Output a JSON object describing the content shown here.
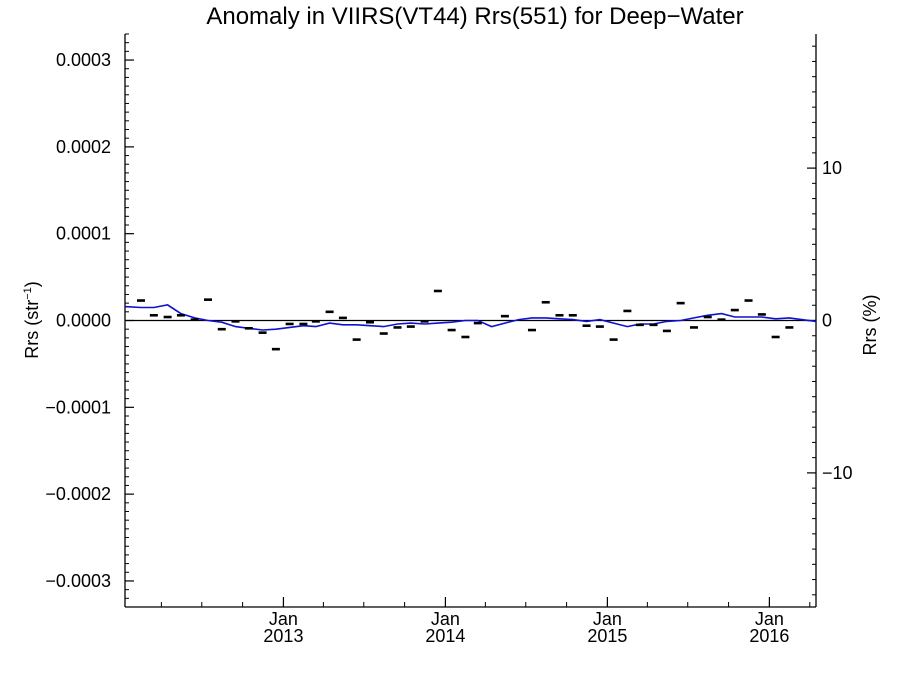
{
  "chart_data": {
    "type": "scatter",
    "title": "Anomaly in VIIRS(VT44) Rrs(551) for Deep−Water",
    "ylabel_left": "Rrs (str",
    "ylabel_left_sup": "−1",
    "ylabel_left_close": ")",
    "ylabel_right": "Rrs (%)",
    "ylim_left": [
      -0.00033,
      0.00033
    ],
    "ylim_right": [
      -18.8,
      18.8
    ],
    "xlim": [
      "2012-01-10",
      "2016-04-15"
    ],
    "left_ticks": [
      {
        "value": 0.0003,
        "label": "0.0003"
      },
      {
        "value": 0.0002,
        "label": "0.0002"
      },
      {
        "value": 0.0001,
        "label": "0.0001"
      },
      {
        "value": 0.0,
        "label": "0.0000"
      },
      {
        "value": -0.0001,
        "label": "−0.0001"
      },
      {
        "value": -0.0002,
        "label": "−0.0002"
      },
      {
        "value": -0.0003,
        "label": "−0.0003"
      }
    ],
    "right_ticks": [
      {
        "value": 10,
        "label": "10"
      },
      {
        "value": 0,
        "label": "0"
      },
      {
        "value": -10,
        "label": "−10"
      }
    ],
    "x_ticks": [
      {
        "date": "2013-01-01",
        "month": "Jan",
        "year": "2013"
      },
      {
        "date": "2014-01-01",
        "month": "Jan",
        "year": "2014"
      },
      {
        "date": "2015-01-01",
        "month": "Jan",
        "year": "2015"
      },
      {
        "date": "2016-01-01",
        "month": "Jan",
        "year": "2016"
      }
    ],
    "monthly_points": [
      {
        "date": "2012-02-15",
        "value": 2.3e-05
      },
      {
        "date": "2012-03-15",
        "value": 6e-06
      },
      {
        "date": "2012-04-15",
        "value": 4e-06
      },
      {
        "date": "2012-05-15",
        "value": 6e-06
      },
      {
        "date": "2012-06-15",
        "value": 1e-06
      },
      {
        "date": "2012-07-15",
        "value": 2.4e-05
      },
      {
        "date": "2012-08-15",
        "value": -1e-05
      },
      {
        "date": "2012-09-15",
        "value": -1e-06
      },
      {
        "date": "2012-10-15",
        "value": -9e-06
      },
      {
        "date": "2012-11-15",
        "value": -1.4e-05
      },
      {
        "date": "2012-12-15",
        "value": -3.3e-05
      },
      {
        "date": "2013-01-15",
        "value": -4e-06
      },
      {
        "date": "2013-02-15",
        "value": -4e-06
      },
      {
        "date": "2013-03-15",
        "value": -1e-06
      },
      {
        "date": "2013-04-15",
        "value": 1e-05
      },
      {
        "date": "2013-05-15",
        "value": 3e-06
      },
      {
        "date": "2013-06-15",
        "value": -2.2e-05
      },
      {
        "date": "2013-07-15",
        "value": -2e-06
      },
      {
        "date": "2013-08-15",
        "value": -1.5e-05
      },
      {
        "date": "2013-09-15",
        "value": -8e-06
      },
      {
        "date": "2013-10-15",
        "value": -7e-06
      },
      {
        "date": "2013-11-15",
        "value": -1e-06
      },
      {
        "date": "2013-12-15",
        "value": 3.4e-05
      },
      {
        "date": "2014-01-15",
        "value": -1.1e-05
      },
      {
        "date": "2014-02-15",
        "value": -1.9e-05
      },
      {
        "date": "2014-03-15",
        "value": -3e-06
      },
      {
        "date": "2014-05-15",
        "value": 5e-06
      },
      {
        "date": "2014-07-15",
        "value": -1.1e-05
      },
      {
        "date": "2014-08-15",
        "value": 2.1e-05
      },
      {
        "date": "2014-09-15",
        "value": 6e-06
      },
      {
        "date": "2014-10-15",
        "value": 6e-06
      },
      {
        "date": "2014-11-15",
        "value": -6e-06
      },
      {
        "date": "2014-12-15",
        "value": -7e-06
      },
      {
        "date": "2015-01-15",
        "value": -2.2e-05
      },
      {
        "date": "2015-02-15",
        "value": 1.1e-05
      },
      {
        "date": "2015-03-15",
        "value": -5e-06
      },
      {
        "date": "2015-04-15",
        "value": -5e-06
      },
      {
        "date": "2015-05-15",
        "value": -1.2e-05
      },
      {
        "date": "2015-06-15",
        "value": 2e-05
      },
      {
        "date": "2015-07-15",
        "value": -8e-06
      },
      {
        "date": "2015-08-15",
        "value": 4e-06
      },
      {
        "date": "2015-09-15",
        "value": 1e-06
      },
      {
        "date": "2015-10-15",
        "value": 1.2e-05
      },
      {
        "date": "2015-11-15",
        "value": 2.3e-05
      },
      {
        "date": "2015-12-15",
        "value": 7e-06
      },
      {
        "date": "2016-01-15",
        "value": -1.9e-05
      },
      {
        "date": "2016-02-15",
        "value": -8e-06
      }
    ],
    "smoothed_line": {
      "color": "#1010d0",
      "points": [
        {
          "date": "2012-01-10",
          "value": 1.6e-05
        },
        {
          "date": "2012-02-15",
          "value": 1.5e-05
        },
        {
          "date": "2012-03-15",
          "value": 1.5e-05
        },
        {
          "date": "2012-04-15",
          "value": 1.8e-05
        },
        {
          "date": "2012-05-15",
          "value": 8e-06
        },
        {
          "date": "2012-06-15",
          "value": 3e-06
        },
        {
          "date": "2012-07-15",
          "value": 0.0
        },
        {
          "date": "2012-08-15",
          "value": -2e-06
        },
        {
          "date": "2012-09-15",
          "value": -7e-06
        },
        {
          "date": "2012-10-15",
          "value": -9e-06
        },
        {
          "date": "2012-11-15",
          "value": -1.1e-05
        },
        {
          "date": "2012-12-15",
          "value": -1e-05
        },
        {
          "date": "2013-01-15",
          "value": -8e-06
        },
        {
          "date": "2013-02-15",
          "value": -6e-06
        },
        {
          "date": "2013-03-15",
          "value": -7e-06
        },
        {
          "date": "2013-04-15",
          "value": -3e-06
        },
        {
          "date": "2013-05-15",
          "value": -5e-06
        },
        {
          "date": "2013-06-15",
          "value": -5e-06
        },
        {
          "date": "2013-07-15",
          "value": -6e-06
        },
        {
          "date": "2013-08-15",
          "value": -7e-06
        },
        {
          "date": "2013-09-15",
          "value": -4e-06
        },
        {
          "date": "2013-10-15",
          "value": -3e-06
        },
        {
          "date": "2013-11-15",
          "value": -4e-06
        },
        {
          "date": "2013-12-15",
          "value": -3e-06
        },
        {
          "date": "2014-01-15",
          "value": -2e-06
        },
        {
          "date": "2014-02-15",
          "value": 0.0
        },
        {
          "date": "2014-03-15",
          "value": 0.0
        },
        {
          "date": "2014-04-15",
          "value": -7e-06
        },
        {
          "date": "2014-05-15",
          "value": -3e-06
        },
        {
          "date": "2014-06-15",
          "value": 1e-06
        },
        {
          "date": "2014-07-15",
          "value": 3e-06
        },
        {
          "date": "2014-08-15",
          "value": 3e-06
        },
        {
          "date": "2014-09-15",
          "value": 2e-06
        },
        {
          "date": "2014-10-15",
          "value": 1e-06
        },
        {
          "date": "2014-11-15",
          "value": -1e-06
        },
        {
          "date": "2014-12-15",
          "value": 1e-06
        },
        {
          "date": "2015-01-15",
          "value": -3e-06
        },
        {
          "date": "2015-02-15",
          "value": -7e-06
        },
        {
          "date": "2015-03-15",
          "value": -4e-06
        },
        {
          "date": "2015-04-15",
          "value": -4e-06
        },
        {
          "date": "2015-05-15",
          "value": -1e-06
        },
        {
          "date": "2015-06-15",
          "value": 0.0
        },
        {
          "date": "2015-07-15",
          "value": 3e-06
        },
        {
          "date": "2015-08-15",
          "value": 6e-06
        },
        {
          "date": "2015-09-15",
          "value": 8e-06
        },
        {
          "date": "2015-10-15",
          "value": 4e-06
        },
        {
          "date": "2015-11-15",
          "value": 4e-06
        },
        {
          "date": "2015-12-15",
          "value": 4e-06
        },
        {
          "date": "2016-01-15",
          "value": 2e-06
        },
        {
          "date": "2016-02-15",
          "value": 3e-06
        },
        {
          "date": "2016-04-15",
          "value": -1e-06
        }
      ]
    },
    "reference_line": {
      "value": 0.0,
      "color": "#000000"
    },
    "grid": false
  }
}
